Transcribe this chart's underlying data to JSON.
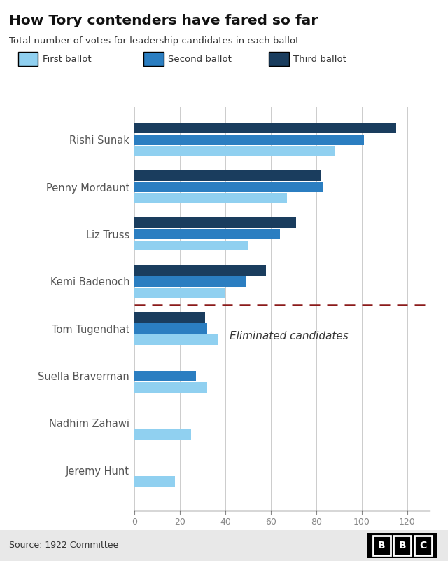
{
  "title": "How Tory contenders have fared so far",
  "subtitle": "Total number of votes for leadership candidates in each ballot",
  "source": "Source: 1922 Committee",
  "legend": [
    "First ballot",
    "Second ballot",
    "Third ballot"
  ],
  "colors": {
    "first": "#90d0f0",
    "second": "#2b7ec1",
    "third": "#1a3d5e"
  },
  "candidates": [
    "Rishi Sunak",
    "Penny Mordaunt",
    "Liz Truss",
    "Kemi Badenoch",
    "Tom Tugendhat",
    "Suella Braverman",
    "Nadhim Zahawi",
    "Jeremy Hunt"
  ],
  "ballots": {
    "first": [
      88,
      67,
      50,
      40,
      37,
      32,
      25,
      18
    ],
    "second": [
      101,
      83,
      64,
      49,
      32,
      27,
      null,
      null
    ],
    "third": [
      115,
      82,
      71,
      58,
      31,
      null,
      null,
      null
    ]
  },
  "eliminated_after_index": 3,
  "eliminated_label": "Eliminated candidates",
  "xlim": [
    0,
    130
  ],
  "xticks": [
    0,
    20,
    40,
    60,
    80,
    100,
    120
  ],
  "background_color": "#ffffff",
  "dashed_line_color": "#8b1a1a",
  "bar_height": 0.22,
  "bar_gap": 0.02
}
